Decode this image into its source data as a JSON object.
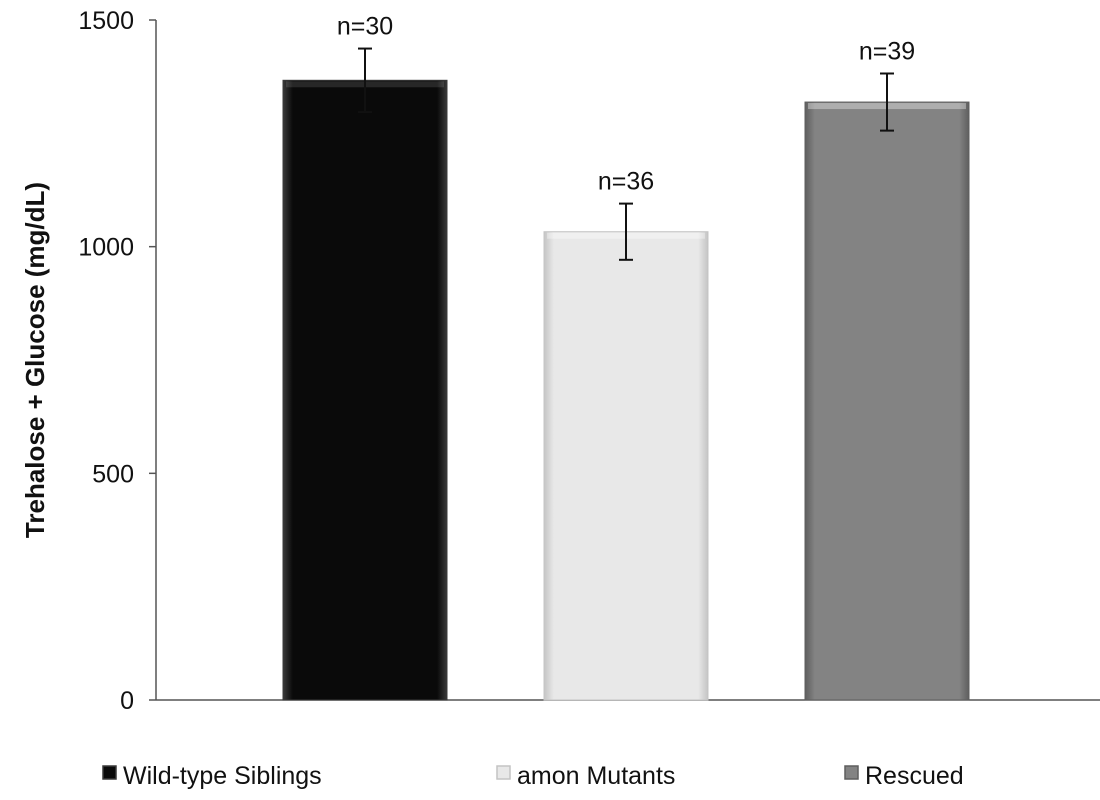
{
  "chart_data": {
    "type": "bar",
    "title": "",
    "xlabel": "",
    "ylabel": "Trehalose + Glucose (mg/dL)",
    "ylim": [
      0,
      1500
    ],
    "yticks": [
      0,
      500,
      1000,
      1500
    ],
    "grid": false,
    "legend_position": "bottom",
    "series": [
      {
        "name": "Wild-type Siblings",
        "value": 1367,
        "error": 70,
        "n_label": "n=30",
        "color": "#0a0a0a",
        "edge_color": "#3a3a3a"
      },
      {
        "name": "amon Mutants",
        "value": 1033,
        "error": 62,
        "n_label": "n=36",
        "color": "#e8e8e8",
        "edge_color": "#c4c4c4"
      },
      {
        "name": "Rescued",
        "value": 1319,
        "error": 63,
        "n_label": "n=39",
        "color": "#838383",
        "edge_color": "#5e5e5e"
      }
    ]
  }
}
